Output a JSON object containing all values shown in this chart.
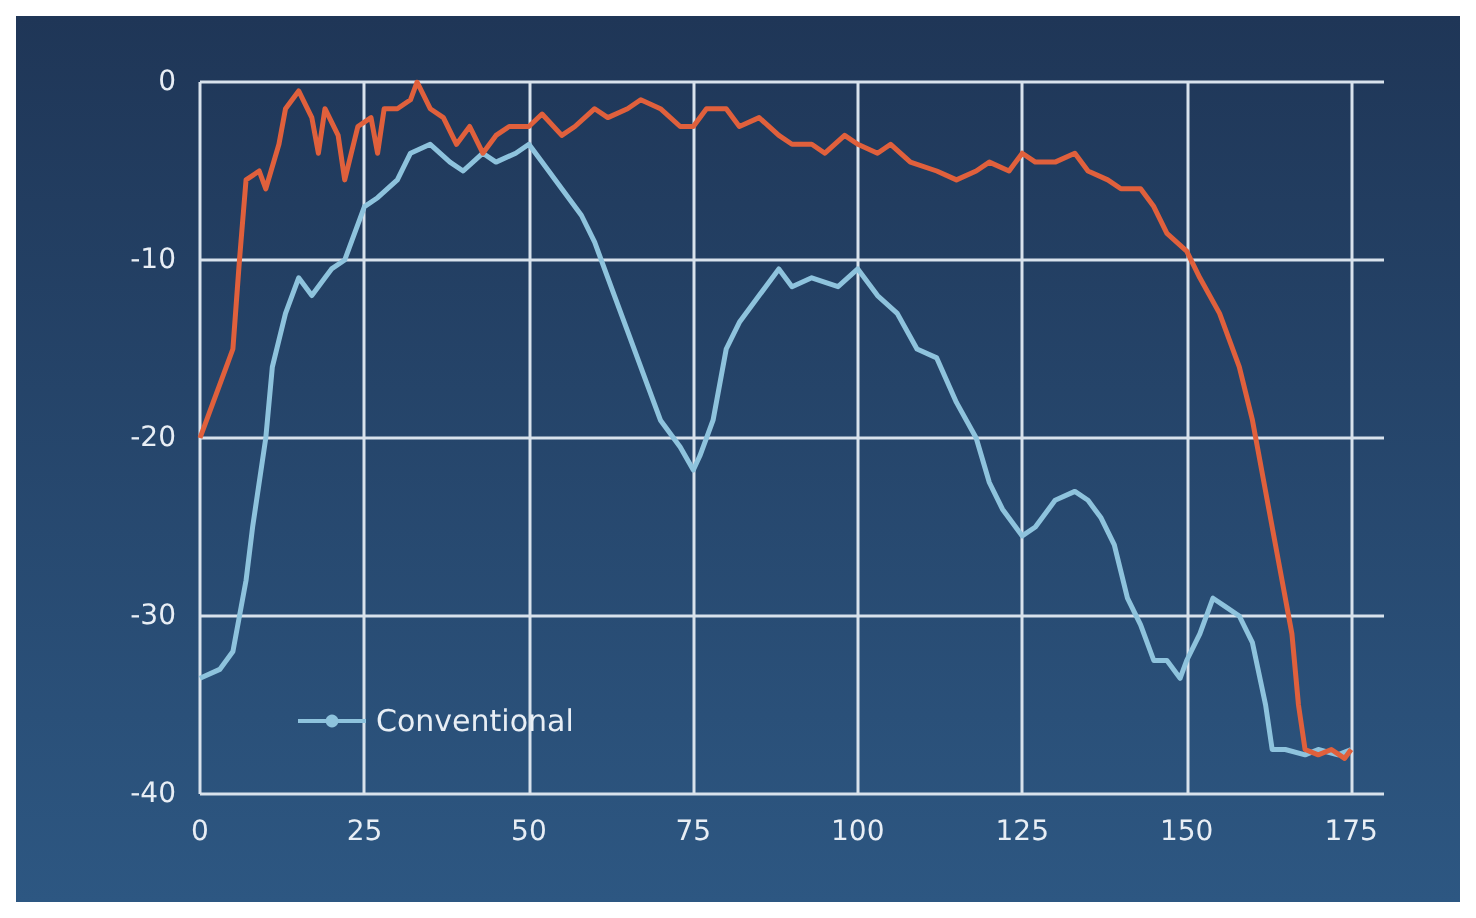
{
  "chart_data": {
    "type": "line",
    "xlim": [
      0,
      180
    ],
    "xticks": [
      0,
      25,
      50,
      75,
      100,
      125,
      150,
      175
    ],
    "ylim": [
      -40,
      0
    ],
    "yticks": [
      -40,
      -30,
      -20,
      -10,
      0
    ],
    "grid": true,
    "legend": "bottom left",
    "marker": "none",
    "line_style": "solid",
    "series": [
      {
        "name": "Conventional",
        "color": "#8ec3dd",
        "x": [
          0,
          3,
          5,
          7,
          8,
          10,
          11,
          13,
          15,
          17,
          19,
          20,
          22,
          25,
          27,
          30,
          32,
          35,
          38,
          40,
          43,
          45,
          48,
          50,
          52,
          55,
          58,
          60,
          63,
          65,
          68,
          70,
          73,
          75,
          76,
          78,
          80,
          82,
          85,
          88,
          90,
          93,
          97,
          100,
          103,
          106,
          109,
          112,
          115,
          118,
          120,
          122,
          125,
          127,
          130,
          133,
          135,
          137,
          139,
          141,
          143,
          145,
          147,
          149,
          150,
          152,
          154,
          156,
          158,
          160,
          162,
          163,
          165,
          168,
          170,
          173,
          175
        ],
        "values": [
          -33.5,
          -33,
          -32,
          -28,
          -25,
          -20,
          -16,
          -13,
          -11,
          -12,
          -11,
          -10.5,
          -10,
          -7,
          -6.5,
          -5.5,
          -4,
          -3.5,
          -4.5,
          -5,
          -4,
          -4.5,
          -4,
          -3.5,
          -4.5,
          -6,
          -7.5,
          -9,
          -12,
          -14,
          -17,
          -19,
          -20.5,
          -21.8,
          -21,
          -19,
          -15,
          -13.5,
          -12,
          -10.5,
          -11.5,
          -11,
          -11.5,
          -10.5,
          -12,
          -13,
          -15,
          -15.5,
          -18,
          -20,
          -22.5,
          -24,
          -25.5,
          -25,
          -23.5,
          -23,
          -23.5,
          -24.5,
          -26,
          -29,
          -30.5,
          -32.5,
          -32.5,
          -33.5,
          -32.5,
          -31,
          -29,
          -29.5,
          -30,
          -31.5,
          -35,
          -37.5,
          -37.5,
          -37.8,
          -37.5,
          -37.8,
          -37.5
        ]
      },
      {
        "color": "#e0603c",
        "x": [
          0,
          2,
          4,
          5,
          6,
          7,
          9,
          10,
          12,
          13,
          15,
          17,
          18,
          19,
          21,
          22,
          24,
          26,
          27,
          28,
          30,
          32,
          33,
          35,
          37,
          39,
          41,
          43,
          45,
          47,
          50,
          52,
          55,
          57,
          60,
          62,
          65,
          67,
          70,
          73,
          75,
          77,
          80,
          82,
          85,
          88,
          90,
          93,
          95,
          98,
          100,
          103,
          105,
          108,
          112,
          115,
          118,
          120,
          123,
          125,
          127,
          130,
          133,
          135,
          138,
          140,
          143,
          145,
          147,
          150,
          152,
          155,
          158,
          160,
          162,
          164,
          166,
          167,
          168,
          170,
          172,
          174,
          175
        ],
        "values": [
          -20,
          -18,
          -16,
          -15,
          -10,
          -5.5,
          -5,
          -6,
          -3.5,
          -1.5,
          -0.5,
          -2,
          -4,
          -1.5,
          -3,
          -5.5,
          -2.5,
          -2,
          -4,
          -1.5,
          -1.5,
          -1,
          0,
          -1.5,
          -2,
          -3.5,
          -2.5,
          -4,
          -3,
          -2.5,
          -2.5,
          -1.8,
          -3,
          -2.5,
          -1.5,
          -2,
          -1.5,
          -1,
          -1.5,
          -2.5,
          -2.5,
          -1.5,
          -1.5,
          -2.5,
          -2,
          -3,
          -3.5,
          -3.5,
          -4,
          -3,
          -3.5,
          -4,
          -3.5,
          -4.5,
          -5,
          -5.5,
          -5,
          -4.5,
          -5,
          -4,
          -4.5,
          -4.5,
          -4,
          -5,
          -5.5,
          -6,
          -6,
          -7,
          -8.5,
          -9.5,
          -11,
          -13,
          -16,
          -19,
          -23,
          -27,
          -31,
          -35,
          -37.5,
          -37.8,
          -37.5,
          -38,
          -37.5
        ]
      }
    ]
  }
}
